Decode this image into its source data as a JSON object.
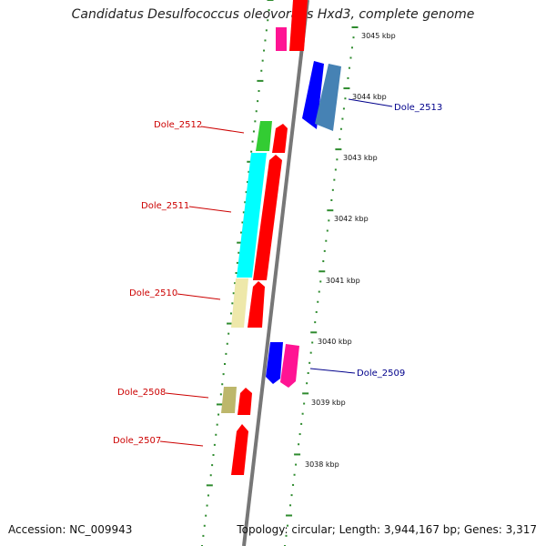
{
  "title": "Candidatus Desulfococcus oleovorans Hxd3, complete genome",
  "accession_text": "Accession: NC_009943",
  "summary_text": "Topology: circular; Length: 3,944,167 bp; Genes: 3,317",
  "kbp_labels": [
    "3045 kbp",
    "3044 kbp",
    "3043 kbp",
    "3042 kbp",
    "3041 kbp",
    "3040 kbp",
    "3039 kbp",
    "3038 kbp"
  ],
  "gene_labels": {
    "dole_2513": "Dole_2513",
    "dole_2512": "Dole_2512",
    "dole_2511": "Dole_2511",
    "dole_2510": "Dole_2510",
    "dole_2509": "Dole_2509",
    "dole_2508": "Dole_2508",
    "dole_2507": "Dole_2507"
  },
  "colors": {
    "forward_label": "#cc0000",
    "reverse_label": "#00008b",
    "backbone": "#888888",
    "tick": "#2e8b2e",
    "cds_red": "#ff0000",
    "cds_blue": "#0000ff",
    "steelblue": "#4682b4",
    "magenta": "#ff1493",
    "pink": "#ff69b4",
    "green": "#33cc33",
    "cyan": "#00ffff",
    "khaki": "#eee8aa",
    "olive": "#bdb76b"
  }
}
